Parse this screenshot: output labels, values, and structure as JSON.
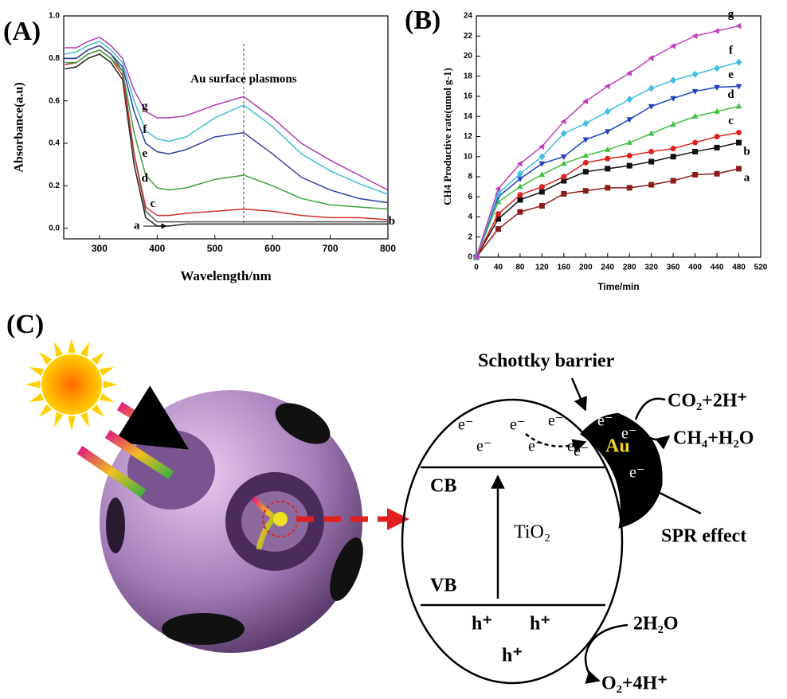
{
  "chart_data": [
    {
      "type": "line",
      "panel_label": "(A)",
      "annotation": "Au surface plasmons",
      "reference_line_x": 550,
      "xlabel": "Wavelength/nm",
      "ylabel": "Absorbance(a.u)",
      "xlim": [
        238,
        800
      ],
      "xticks": [
        300,
        400,
        500,
        600,
        700,
        800
      ],
      "ylim": [
        -0.05,
        1.0
      ],
      "yticks": [
        {
          "value": 0,
          "label": "0.0"
        },
        0.2,
        0.4,
        0.6,
        0.8,
        {
          "value": 1,
          "label": "1.0"
        }
      ],
      "x": [
        240,
        260,
        280,
        300,
        320,
        340,
        360,
        380,
        400,
        420,
        450,
        500,
        550,
        600,
        650,
        700,
        750,
        800
      ],
      "series": [
        {
          "name": "a",
          "color": "#222222",
          "values": [
            0.75,
            0.76,
            0.8,
            0.82,
            0.78,
            0.7,
            0.3,
            0.05,
            0.01,
            0.01,
            0.02,
            0.02,
            0.02,
            0.02,
            0.02,
            0.02,
            0.02,
            0.02
          ]
        },
        {
          "name": "b",
          "color": "#555555",
          "values": [
            0.8,
            0.8,
            0.84,
            0.86,
            0.82,
            0.74,
            0.35,
            0.08,
            0.03,
            0.03,
            0.03,
            0.03,
            0.03,
            0.03,
            0.03,
            0.03,
            0.03,
            0.03
          ]
        },
        {
          "name": "c",
          "color": "#d03030",
          "values": [
            0.77,
            0.78,
            0.82,
            0.84,
            0.8,
            0.72,
            0.35,
            0.1,
            0.06,
            0.06,
            0.07,
            0.08,
            0.09,
            0.08,
            0.06,
            0.05,
            0.05,
            0.04
          ]
        },
        {
          "name": "d",
          "color": "#40a040",
          "values": [
            0.78,
            0.78,
            0.82,
            0.84,
            0.8,
            0.74,
            0.45,
            0.25,
            0.19,
            0.18,
            0.19,
            0.23,
            0.25,
            0.2,
            0.14,
            0.11,
            0.1,
            0.09
          ]
        },
        {
          "name": "e",
          "color": "#3040a0",
          "values": [
            0.8,
            0.8,
            0.84,
            0.86,
            0.82,
            0.76,
            0.55,
            0.4,
            0.36,
            0.35,
            0.37,
            0.43,
            0.45,
            0.35,
            0.24,
            0.18,
            0.14,
            0.12
          ]
        },
        {
          "name": "f",
          "color": "#40c0d0",
          "values": [
            0.82,
            0.83,
            0.86,
            0.88,
            0.84,
            0.78,
            0.6,
            0.46,
            0.42,
            0.41,
            0.43,
            0.52,
            0.58,
            0.48,
            0.35,
            0.27,
            0.21,
            0.16
          ]
        },
        {
          "name": "g",
          "color": "#b03ab0",
          "values": [
            0.85,
            0.85,
            0.88,
            0.9,
            0.86,
            0.8,
            0.65,
            0.55,
            0.52,
            0.52,
            0.53,
            0.58,
            0.62,
            0.52,
            0.4,
            0.32,
            0.25,
            0.18
          ]
        }
      ]
    },
    {
      "type": "line",
      "panel_label": "(B)",
      "xlabel": "Time/min",
      "ylabel": "CH4 Productive rate(umol g-1)",
      "xlim": [
        0,
        520
      ],
      "xticks": [
        0,
        40,
        80,
        120,
        160,
        200,
        240,
        280,
        320,
        360,
        400,
        440,
        480,
        520
      ],
      "ylim": [
        0,
        24
      ],
      "yticks": [
        0,
        2,
        4,
        6,
        8,
        10,
        12,
        14,
        16,
        18,
        20,
        22,
        24
      ],
      "x": [
        0,
        40,
        80,
        120,
        160,
        200,
        240,
        280,
        320,
        360,
        400,
        440,
        480
      ],
      "series": [
        {
          "name": "a",
          "color": "#8b1a1a",
          "marker": "square",
          "values": [
            0,
            2.8,
            4.5,
            5.1,
            6.3,
            6.6,
            6.9,
            6.9,
            7.2,
            7.6,
            8.2,
            8.3,
            8.8
          ]
        },
        {
          "name": "b",
          "color": "#111111",
          "marker": "square",
          "values": [
            0,
            3.8,
            5.7,
            6.5,
            7.6,
            8.5,
            8.8,
            9.1,
            9.5,
            10,
            10.5,
            10.9,
            11.4
          ]
        },
        {
          "name": "c",
          "color": "#e02020",
          "marker": "circle",
          "values": [
            0,
            4.3,
            6.2,
            7,
            8,
            9.4,
            9.8,
            10.1,
            10.5,
            10.8,
            11.4,
            12,
            12.4
          ]
        },
        {
          "name": "d",
          "color": "#40c040",
          "marker": "triangle-up",
          "values": [
            0,
            5.5,
            7,
            8.2,
            9.3,
            10.1,
            10.7,
            11.4,
            12.3,
            13.2,
            14,
            14.5,
            15
          ]
        },
        {
          "name": "e",
          "color": "#2040c0",
          "marker": "triangle-down",
          "values": [
            0,
            6,
            7.8,
            9.3,
            10,
            11.7,
            12.5,
            13.7,
            15,
            15.8,
            16.5,
            16.9,
            17
          ]
        },
        {
          "name": "f",
          "color": "#40c0e0",
          "marker": "diamond",
          "values": [
            0,
            6.3,
            8.3,
            10,
            12.3,
            13.3,
            14.5,
            15.7,
            16.8,
            17.6,
            18.2,
            18.8,
            19.4
          ]
        },
        {
          "name": "g",
          "color": "#c040c0",
          "marker": "triangle-left",
          "values": [
            0,
            6.8,
            9.3,
            11,
            13.5,
            15.5,
            17,
            18.3,
            19.8,
            21,
            22,
            22.5,
            23
          ]
        }
      ]
    }
  ],
  "diagram": {
    "panel_label": "(C)",
    "schottky": "Schottky barrier",
    "reaction_top": "CO₂+2H⁺",
    "product_top": "CH₄+H₂O",
    "spr": "SPR effect",
    "cb": "CB",
    "vb": "VB",
    "semiconductor": "TiO₂",
    "metal": "Au",
    "electrons": [
      "e⁻",
      "e⁻",
      "e⁻",
      "e⁻",
      "e⁻",
      "e⁻",
      "e⁻",
      "e⁻",
      "e⁻",
      "e⁻"
    ],
    "holes": [
      "h⁺",
      "h⁺",
      "h⁺"
    ],
    "reaction_bottom": "2H₂O",
    "product_bottom": "O₂+4H⁺"
  }
}
